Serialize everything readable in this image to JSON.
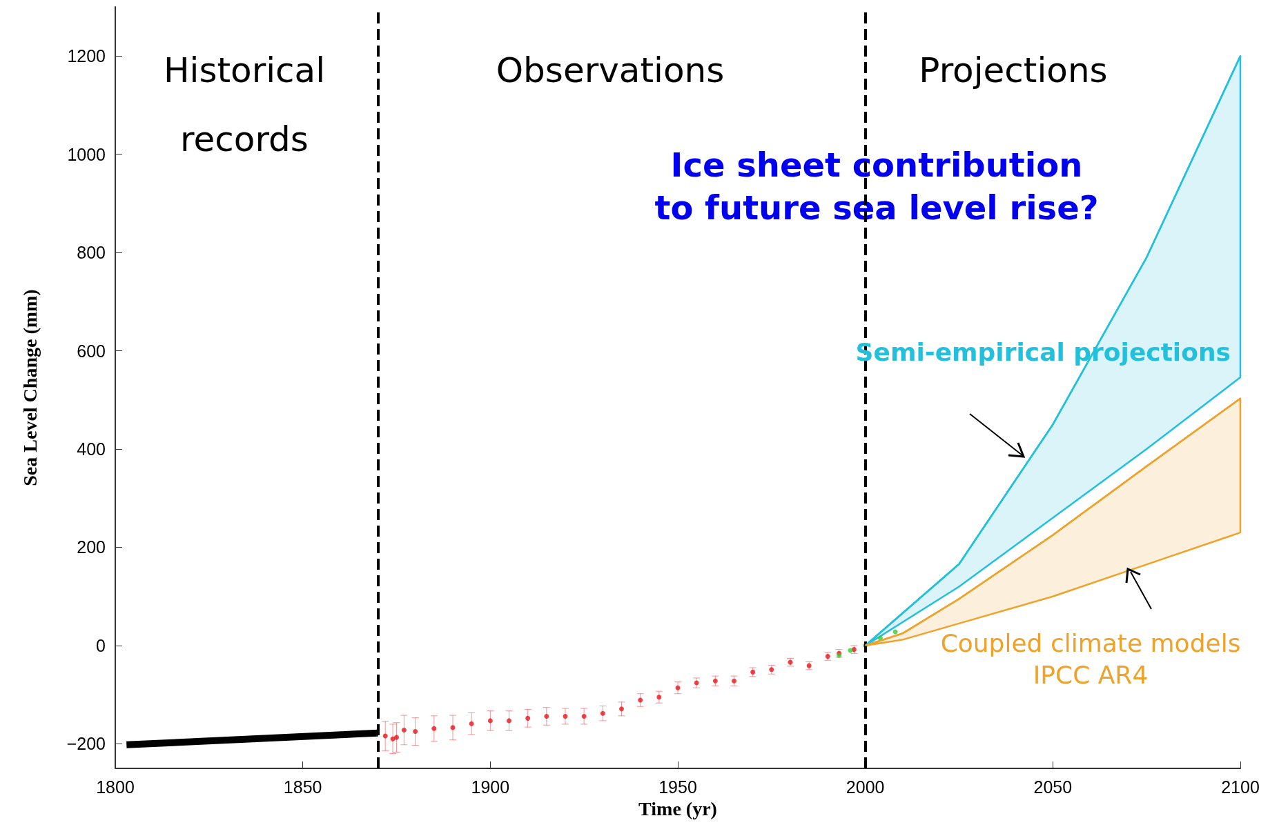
{
  "chart_data": {
    "type": "line",
    "xlabel": "Time (yr)",
    "ylabel": "Sea Level Change (mm)",
    "xlim": [
      1800,
      2100
    ],
    "xticks": [
      1800,
      1850,
      1900,
      1950,
      2000,
      2050,
      2100
    ],
    "ylim": [
      -250,
      1300
    ],
    "yticks": [
      -200,
      0,
      200,
      400,
      600,
      800,
      1000,
      1200
    ],
    "grid": false,
    "legend": false,
    "annotations": [
      "Ice sheet contribution\nto future sea level rise?",
      "Historical\nrecords",
      "Observations",
      "Projections"
    ],
    "ref_lines": [
      {
        "axis": "x",
        "value": 1870,
        "color": "#000000",
        "line_style": "dashed"
      },
      {
        "axis": "x",
        "value": 2000,
        "color": "#000000",
        "line_style": "dashed"
      }
    ],
    "series": [
      {
        "color": "#000000",
        "marker": "none",
        "x": [
          1803,
          1870
        ],
        "values": [
          -202,
          -178
        ]
      },
      {
        "type": "scatter",
        "color": "#e8141a",
        "marker": "circle",
        "x": [
          1872,
          1874,
          1875,
          1877,
          1880,
          1885,
          1890,
          1895,
          1900,
          1905,
          1910,
          1915,
          1920,
          1925,
          1930,
          1935,
          1940,
          1945,
          1950,
          1955,
          1960,
          1965,
          1970,
          1975,
          1980,
          1985,
          1990,
          1993,
          1997
        ],
        "values": [
          -184,
          -190,
          -187,
          -172,
          -175,
          -169,
          -167,
          -159,
          -153,
          -153,
          -148,
          -144,
          -144,
          -144,
          -138,
          -129,
          -111,
          -105,
          -86,
          -76,
          -72,
          -72,
          -54,
          -49,
          -34,
          -41,
          -22,
          -16,
          -8
        ],
        "errors": [
          30,
          30,
          30,
          30,
          28,
          26,
          25,
          22,
          20,
          20,
          18,
          18,
          16,
          16,
          15,
          14,
          13,
          12,
          12,
          10,
          10,
          10,
          9,
          9,
          8,
          8,
          8,
          8,
          8
        ]
      },
      {
        "type": "scatter",
        "color": "#33cc33",
        "marker": "circle",
        "x": [
          1993,
          1996,
          2000,
          2004,
          2008
        ],
        "values": [
          -20,
          -10,
          0,
          15,
          28
        ]
      },
      {
        "type": "line",
        "marker": "none",
        "name": "Semi-empirical projections",
        "color": "#22c0dc",
        "x": [
          2000,
          2025,
          2050,
          2075,
          2100
        ],
        "values": [
          0,
          166,
          450,
          790,
          1200
        ],
        "lower": [
          0,
          120,
          260,
          400,
          546
        ],
        "upper": [
          0,
          166,
          450,
          790,
          1200
        ]
      },
      {
        "type": "line",
        "marker": "none",
        "name": "Coupled climate models\nIPCC AR4",
        "color": "#eea22a",
        "x": [
          2000,
          2010,
          2025,
          2050,
          2075,
          2100
        ],
        "values": [
          0,
          25,
          95,
          225,
          365,
          503
        ],
        "lower": [
          0,
          12,
          45,
          100,
          165,
          230
        ],
        "upper": [
          0,
          25,
          95,
          225,
          365,
          503
        ]
      }
    ]
  }
}
